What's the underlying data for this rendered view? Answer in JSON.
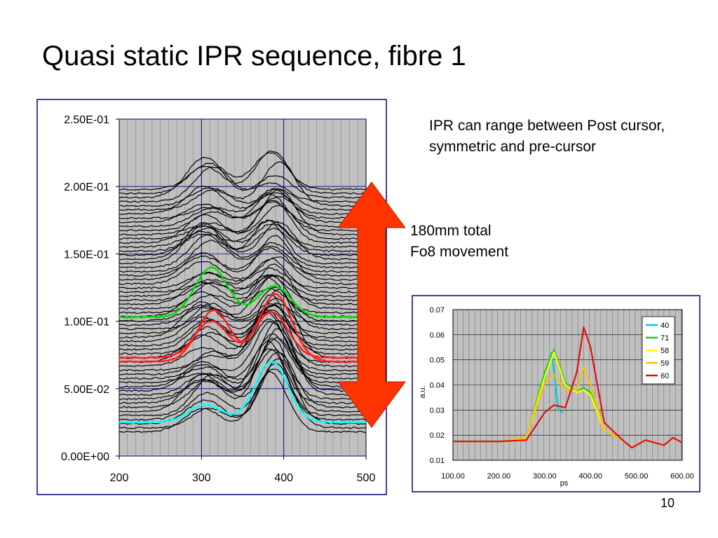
{
  "slide": {
    "title": "Quasi static IPR sequence, fibre 1",
    "note1": "IPR can range between Post cursor, symmetric and pre-cursor",
    "note2_line1": "180mm total",
    "note2_line2": "Fo8 movement",
    "page_number": "10",
    "arrow_color": "#ff3300"
  },
  "chart_data": [
    {
      "type": "line",
      "title": "",
      "xlabel": "",
      "ylabel": "",
      "xlim": [
        200,
        500
      ],
      "ylim": [
        0,
        0.25
      ],
      "x_ticks": [
        "200",
        "300",
        "400",
        "500"
      ],
      "y_ticks": [
        "0.00E+00",
        "5.00E-02",
        "1.00E-01",
        "1.50E-01",
        "2.00E-01",
        "2.50E-01"
      ],
      "grid": true,
      "background": "#c0c0c0",
      "series_count_black": 60,
      "highlighted_series": [
        {
          "color": "#00ffff",
          "peaks": [
            {
              "x": 305,
              "y": 0.038
            },
            {
              "x": 385,
              "y": 0.07
            }
          ],
          "baseline": 0.025
        },
        {
          "color": "#ff2020",
          "peaks": [
            {
              "x": 315,
              "y": 0.108
            },
            {
              "x": 390,
              "y": 0.12
            }
          ],
          "baseline": 0.07
        },
        {
          "color": "#ff2020",
          "peaks": [
            {
              "x": 312,
              "y": 0.1
            },
            {
              "x": 385,
              "y": 0.107
            }
          ],
          "baseline": 0.073
        },
        {
          "color": "#00dd00",
          "peaks": [
            {
              "x": 312,
              "y": 0.14
            },
            {
              "x": 388,
              "y": 0.126
            }
          ],
          "baseline": 0.103
        }
      ]
    },
    {
      "type": "line",
      "title": "",
      "xlabel": "ps",
      "ylabel": "a.u.",
      "xlim": [
        100,
        600
      ],
      "ylim": [
        0.01,
        0.07
      ],
      "x_ticks": [
        "100.00",
        "200.00",
        "300.00",
        "400.00",
        "500.00",
        "600.00"
      ],
      "y_ticks": [
        "0.01",
        "0.02",
        "0.03",
        "0.04",
        "0.05",
        "0.06",
        "0.07"
      ],
      "grid": true,
      "legend_position": "top-right",
      "series": [
        {
          "name": "40",
          "color": "#00c8e0",
          "x": [
            100,
            200,
            260,
            300,
            315,
            330,
            340
          ],
          "y": [
            0.0175,
            0.0175,
            0.019,
            0.042,
            0.053,
            0.03,
            0.029
          ]
        },
        {
          "name": "71",
          "color": "#22cc22",
          "x": [
            100,
            200,
            260,
            300,
            320,
            345,
            370,
            385,
            400,
            430,
            470,
            490,
            520,
            560,
            580,
            600
          ],
          "y": [
            0.0175,
            0.0175,
            0.019,
            0.045,
            0.054,
            0.041,
            0.037,
            0.039,
            0.037,
            0.022,
            0.018,
            0.015,
            0.018,
            0.016,
            0.019,
            0.017
          ]
        },
        {
          "name": "58",
          "color": "#ffff00",
          "x": [
            100,
            200,
            260,
            300,
            320,
            345,
            370,
            385,
            400,
            430,
            470,
            490,
            520,
            560,
            580,
            600
          ],
          "y": [
            0.0175,
            0.0175,
            0.019,
            0.043,
            0.053,
            0.04,
            0.037,
            0.038,
            0.036,
            0.022,
            0.018,
            0.015,
            0.018,
            0.016,
            0.019,
            0.017
          ]
        },
        {
          "name": "59",
          "color": "#ffc000",
          "x": [
            100,
            200,
            260,
            300,
            320,
            345,
            370,
            385,
            400,
            430,
            470,
            490,
            520,
            560,
            580,
            600
          ],
          "y": [
            0.0175,
            0.0175,
            0.019,
            0.041,
            0.044,
            0.038,
            0.038,
            0.047,
            0.04,
            0.022,
            0.018,
            0.015,
            0.018,
            0.016,
            0.019,
            0.017
          ]
        },
        {
          "name": "60",
          "color": "#dd1111",
          "x": [
            100,
            200,
            260,
            300,
            320,
            345,
            370,
            385,
            400,
            430,
            470,
            490,
            520,
            560,
            580,
            600
          ],
          "y": [
            0.0175,
            0.0175,
            0.018,
            0.029,
            0.032,
            0.031,
            0.045,
            0.063,
            0.055,
            0.025,
            0.018,
            0.015,
            0.018,
            0.016,
            0.019,
            0.017
          ]
        }
      ]
    }
  ]
}
